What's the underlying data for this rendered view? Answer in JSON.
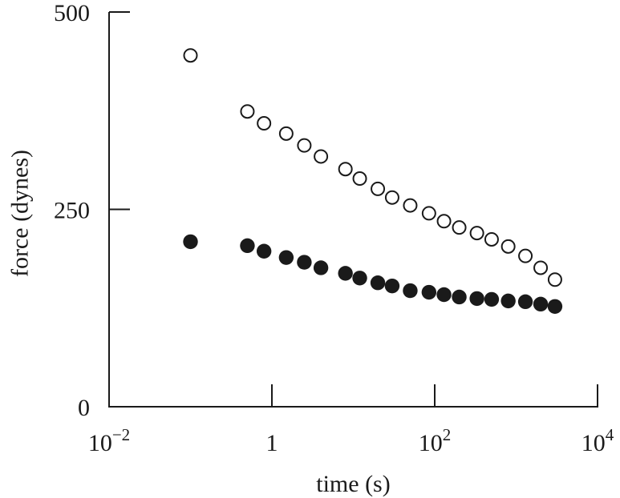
{
  "chart_data": {
    "type": "scatter",
    "x_scale": "log",
    "xlabel": "time (s)",
    "ylabel": "force (dynes)",
    "xlim": [
      0.01,
      10000
    ],
    "ylim": [
      0,
      500
    ],
    "x_ticks": [
      {
        "value": 0.01,
        "base": "10",
        "exp": "−2"
      },
      {
        "value": 1,
        "base": "1",
        "exp": ""
      },
      {
        "value": 100,
        "base": "10",
        "exp": "2"
      },
      {
        "value": 10000,
        "base": "10",
        "exp": "4"
      }
    ],
    "y_ticks": [
      {
        "value": 0,
        "label": "0"
      },
      {
        "value": 250,
        "label": "250"
      },
      {
        "value": 500,
        "label": "500"
      }
    ],
    "grid": false,
    "series": [
      {
        "marker": "open-circle",
        "color": "#1a1a1a",
        "points": [
          {
            "x": 0.1,
            "y": 445
          },
          {
            "x": 0.5,
            "y": 374
          },
          {
            "x": 0.8,
            "y": 359
          },
          {
            "x": 1.5,
            "y": 346
          },
          {
            "x": 2.5,
            "y": 331
          },
          {
            "x": 4,
            "y": 317
          },
          {
            "x": 8,
            "y": 301
          },
          {
            "x": 12,
            "y": 289
          },
          {
            "x": 20,
            "y": 276
          },
          {
            "x": 30,
            "y": 265
          },
          {
            "x": 50,
            "y": 255
          },
          {
            "x": 85,
            "y": 245
          },
          {
            "x": 130,
            "y": 235
          },
          {
            "x": 200,
            "y": 227
          },
          {
            "x": 330,
            "y": 220
          },
          {
            "x": 500,
            "y": 212
          },
          {
            "x": 800,
            "y": 203
          },
          {
            "x": 1300,
            "y": 191
          },
          {
            "x": 2000,
            "y": 176
          },
          {
            "x": 3000,
            "y": 161
          }
        ]
      },
      {
        "marker": "filled-circle",
        "color": "#1a1a1a",
        "points": [
          {
            "x": 0.1,
            "y": 209
          },
          {
            "x": 0.5,
            "y": 204
          },
          {
            "x": 0.8,
            "y": 197
          },
          {
            "x": 1.5,
            "y": 189
          },
          {
            "x": 2.5,
            "y": 183
          },
          {
            "x": 4,
            "y": 176
          },
          {
            "x": 8,
            "y": 169
          },
          {
            "x": 12,
            "y": 163
          },
          {
            "x": 20,
            "y": 157
          },
          {
            "x": 30,
            "y": 153
          },
          {
            "x": 50,
            "y": 147
          },
          {
            "x": 85,
            "y": 145
          },
          {
            "x": 130,
            "y": 142
          },
          {
            "x": 200,
            "y": 139
          },
          {
            "x": 330,
            "y": 137
          },
          {
            "x": 500,
            "y": 136
          },
          {
            "x": 800,
            "y": 134
          },
          {
            "x": 1300,
            "y": 133
          },
          {
            "x": 2000,
            "y": 130
          },
          {
            "x": 3000,
            "y": 127
          }
        ]
      }
    ]
  }
}
